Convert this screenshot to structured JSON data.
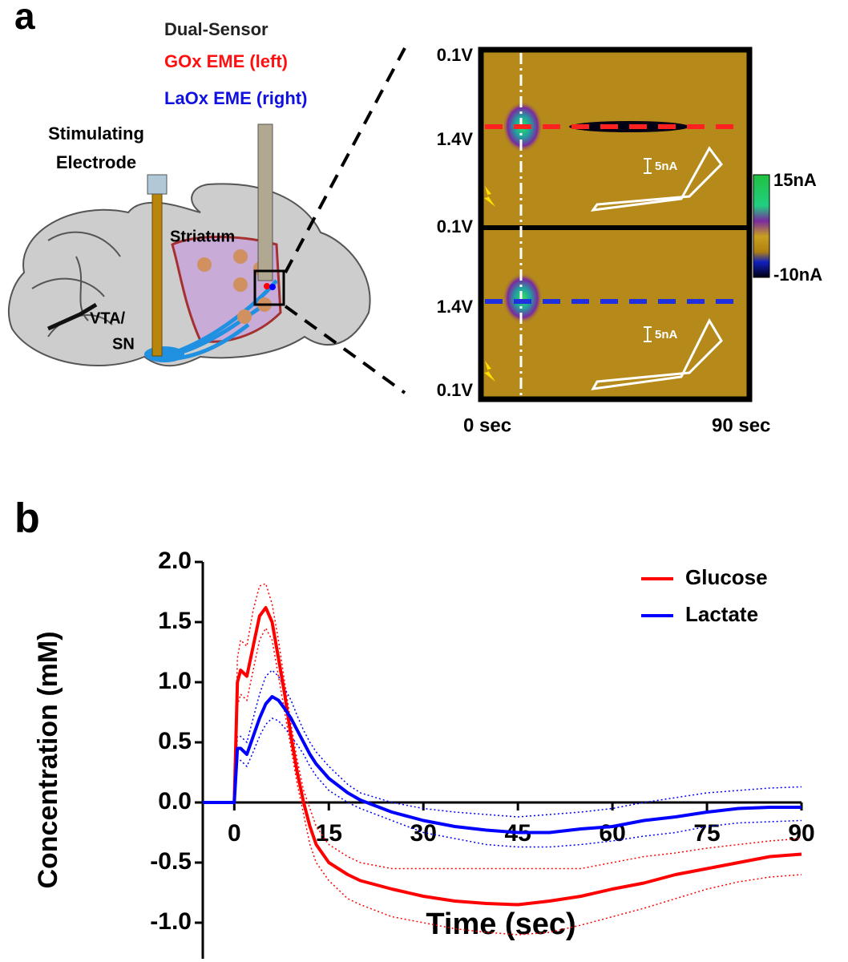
{
  "panel_a": {
    "label": "a",
    "legend_title": "Dual-Sensor",
    "sensor_left": "GOx EME (left)",
    "sensor_right": "LaOx EME (right)",
    "stim_line1": "Stimulating",
    "stim_line2": "Electrode",
    "region": "Striatum",
    "vta_line1": "VTA/",
    "vta_line2": "SN",
    "voltage_labels": [
      "0.1V",
      "1.4V",
      "0.1V",
      "1.4V",
      "0.1V"
    ],
    "scale_labels": [
      "5nA",
      "5nA"
    ],
    "colorbar_labels": [
      "15nA",
      "-10nA"
    ],
    "time_labels": [
      "0 sec",
      "90 sec"
    ]
  },
  "panel_b": {
    "label": "b"
  },
  "chart_data": {
    "type": "line",
    "x_label": "Time (sec)",
    "y_label": "Concentration (mM)",
    "x": [
      -5,
      -2,
      0,
      0.5,
      1,
      2,
      3,
      4,
      5,
      6,
      7,
      8,
      9,
      10,
      11,
      12,
      13,
      15,
      18,
      20,
      25,
      30,
      35,
      40,
      45,
      50,
      55,
      60,
      65,
      70,
      75,
      80,
      85,
      90
    ],
    "series": [
      {
        "name": "Glucose",
        "color": "#ff0000",
        "values": [
          0,
          0,
          0,
          1.0,
          1.1,
          1.05,
          1.3,
          1.55,
          1.62,
          1.5,
          1.2,
          0.9,
          0.55,
          0.25,
          0.0,
          -0.2,
          -0.35,
          -0.5,
          -0.6,
          -0.65,
          -0.72,
          -0.78,
          -0.82,
          -0.84,
          -0.85,
          -0.82,
          -0.78,
          -0.72,
          -0.67,
          -0.6,
          -0.55,
          -0.5,
          -0.45,
          -0.43
        ],
        "upper": [
          0,
          0,
          0,
          1.2,
          1.35,
          1.3,
          1.6,
          1.8,
          1.82,
          1.65,
          1.35,
          1.0,
          0.65,
          0.35,
          0.1,
          -0.05,
          -0.2,
          -0.35,
          -0.45,
          -0.5,
          -0.55,
          -0.55,
          -0.55,
          -0.55,
          -0.55,
          -0.55,
          -0.55,
          -0.5,
          -0.45,
          -0.42,
          -0.38,
          -0.35,
          -0.32,
          -0.3
        ],
        "lower": [
          0,
          0,
          0,
          0.8,
          0.9,
          0.85,
          1.1,
          1.35,
          1.45,
          1.35,
          1.05,
          0.75,
          0.45,
          0.15,
          -0.1,
          -0.35,
          -0.5,
          -0.65,
          -0.8,
          -0.85,
          -0.95,
          -1.0,
          -1.05,
          -1.08,
          -1.1,
          -1.08,
          -1.02,
          -0.95,
          -0.88,
          -0.8,
          -0.72,
          -0.66,
          -0.62,
          -0.6
        ]
      },
      {
        "name": "Lactate",
        "color": "#0000ff",
        "values": [
          0,
          0,
          0,
          0.45,
          0.45,
          0.4,
          0.55,
          0.7,
          0.82,
          0.88,
          0.85,
          0.78,
          0.7,
          0.6,
          0.5,
          0.4,
          0.32,
          0.2,
          0.08,
          0.02,
          -0.08,
          -0.15,
          -0.2,
          -0.23,
          -0.25,
          -0.25,
          -0.22,
          -0.2,
          -0.15,
          -0.12,
          -0.08,
          -0.05,
          -0.04,
          -0.04
        ],
        "upper": [
          0,
          0,
          0,
          0.55,
          0.55,
          0.5,
          0.7,
          0.9,
          1.05,
          1.1,
          1.05,
          0.95,
          0.85,
          0.72,
          0.6,
          0.5,
          0.42,
          0.3,
          0.15,
          0.08,
          0.0,
          -0.05,
          -0.08,
          -0.1,
          -0.12,
          -0.1,
          -0.08,
          -0.05,
          0.0,
          0.04,
          0.08,
          0.1,
          0.12,
          0.13
        ],
        "lower": [
          0,
          0,
          0,
          0.35,
          0.35,
          0.3,
          0.42,
          0.55,
          0.65,
          0.7,
          0.68,
          0.62,
          0.55,
          0.48,
          0.4,
          0.3,
          0.22,
          0.1,
          0.0,
          -0.05,
          -0.15,
          -0.25,
          -0.3,
          -0.35,
          -0.37,
          -0.37,
          -0.35,
          -0.32,
          -0.28,
          -0.25,
          -0.2,
          -0.17,
          -0.16,
          -0.15
        ]
      }
    ],
    "xlim": [
      -5,
      90
    ],
    "xticks": [
      0,
      15,
      30,
      45,
      60,
      75,
      90
    ],
    "ylim": [
      -1.3,
      2.0
    ],
    "yticks": [
      {
        "value": -1.0,
        "label": "-1.0"
      },
      -0.5,
      {
        "value": 0.0,
        "label": "0.0"
      },
      0.5,
      {
        "value": 1.0,
        "label": "1.0"
      },
      1.5,
      {
        "value": 2.0,
        "label": "2.0"
      }
    ],
    "legend": "upper right"
  }
}
